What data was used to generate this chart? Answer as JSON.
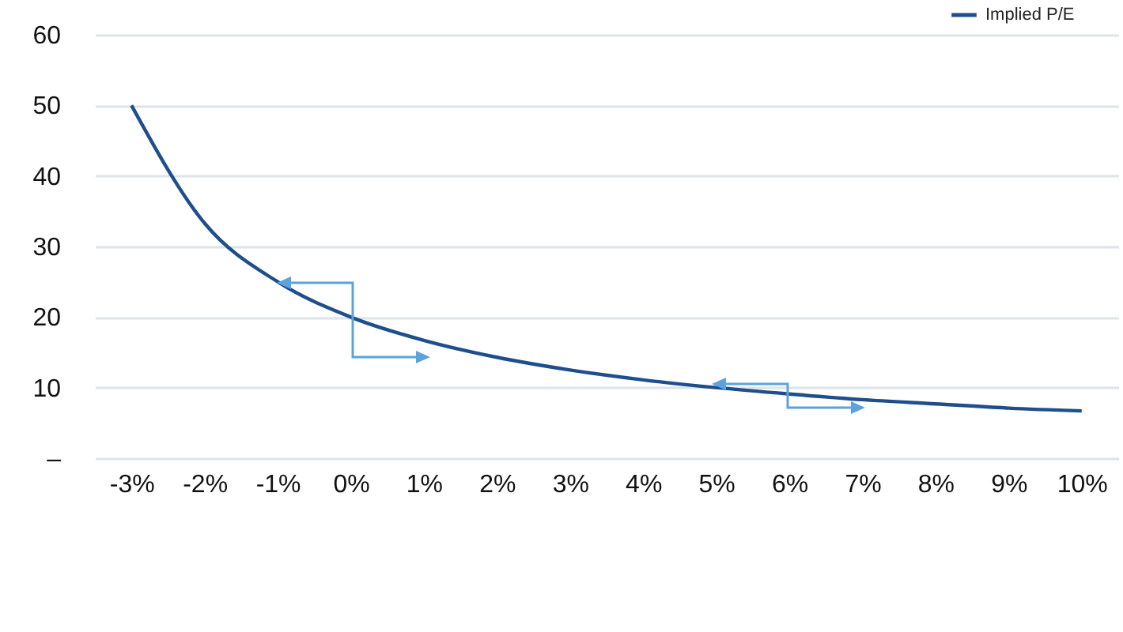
{
  "chart_data": {
    "type": "line",
    "categories": [
      "-3%",
      "-2%",
      "-1%",
      "0%",
      "1%",
      "2%",
      "3%",
      "4%",
      "5%",
      "6%",
      "7%",
      "8%",
      "9%",
      "10%"
    ],
    "series": [
      {
        "name": "Implied P/E",
        "color": "#1f4e8c",
        "values": [
          50,
          33.3,
          25,
          20,
          16.7,
          14.3,
          12.5,
          11.1,
          10,
          9.1,
          8.3,
          7.7,
          7.1,
          6.7
        ]
      }
    ],
    "ylim": [
      0,
      60
    ],
    "yticks": [
      {
        "value": 0,
        "label": "–"
      },
      10,
      20,
      30,
      40,
      50,
      60
    ],
    "grid": "y",
    "legend": "top right",
    "marker": "none",
    "line_style": "solid"
  }
}
